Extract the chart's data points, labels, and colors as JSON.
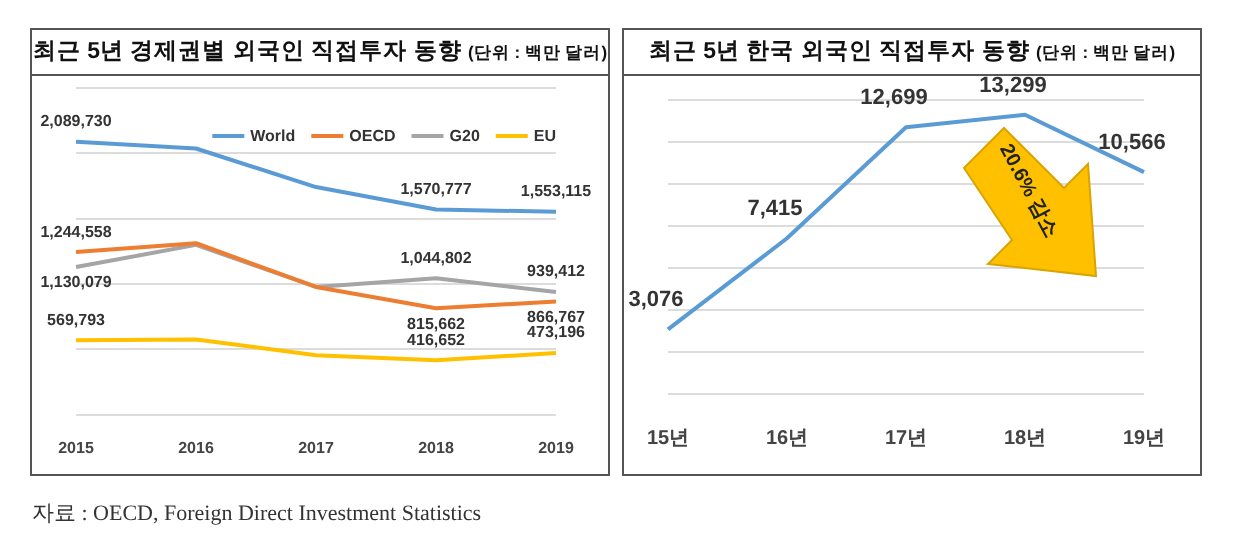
{
  "chart_data": [
    {
      "type": "line",
      "title": "최근 5년 경제권별 외국인 직접투자 동향",
      "subtitle": "(단위 : 백만 달러)",
      "categories": [
        "2015",
        "2016",
        "2017",
        "2018",
        "2019"
      ],
      "series": [
        {
          "name": "World",
          "color": "#5b9bd5",
          "values": [
            2089730,
            2037000,
            1742000,
            1570777,
            1553115
          ],
          "value_labels": [
            "2,089,730",
            null,
            null,
            "1,570,777",
            "1,553,115"
          ]
        },
        {
          "name": "OECD",
          "color": "#ed7d31",
          "values": [
            1244558,
            1313000,
            978000,
            815662,
            866767
          ],
          "value_labels": [
            "1,244,558",
            null,
            null,
            "815,662",
            "866,767"
          ]
        },
        {
          "name": "G20",
          "color": "#a5a5a5",
          "values": [
            1130079,
            1300000,
            978000,
            1044802,
            939412
          ],
          "value_labels": [
            "1,130,079",
            null,
            null,
            "1,044,802",
            "939,412"
          ]
        },
        {
          "name": "EU",
          "color": "#ffc000",
          "values": [
            569793,
            576000,
            456000,
            416652,
            473196
          ],
          "value_labels": [
            "569,793",
            null,
            null,
            "416,652",
            "473,196"
          ]
        }
      ],
      "ylim": [
        0,
        2500000
      ],
      "yticks": [
        {
          "value": 0,
          "label": null
        },
        {
          "value": 500000,
          "label": null
        },
        {
          "value": 1000000,
          "label": null
        },
        {
          "value": 1500000,
          "label": null
        },
        {
          "value": 2000000,
          "label": null
        },
        {
          "value": 2500000,
          "label": null
        }
      ],
      "grid": "y",
      "legend": "top right",
      "tick_labels": "x",
      "annotations": [
        "자료 : OECD, Foreign Direct Investment Statistics"
      ]
    },
    {
      "type": "line",
      "title": "최근 5년 한국 외국인 직접투자 동향",
      "subtitle": "(단위 : 백만 달러)",
      "categories": [
        "15년",
        "16년",
        "17년",
        "18년",
        "19년"
      ],
      "values": [
        3076,
        7415,
        12699,
        13299,
        10566
      ],
      "value_labels": [
        "3,076",
        "7,415",
        "12,699",
        "13,299",
        "10,566"
      ],
      "color": "#5b9bd5",
      "ylim": [
        0,
        14000
      ],
      "yticks": [
        {
          "value": 0,
          "label": null
        },
        {
          "value": 2000,
          "label": null
        },
        {
          "value": 4000,
          "label": null
        },
        {
          "value": 6000,
          "label": null
        },
        {
          "value": 8000,
          "label": null
        },
        {
          "value": 10000,
          "label": null
        },
        {
          "value": 12000,
          "label": null
        },
        {
          "value": 14000,
          "label": null
        }
      ],
      "grid": "y",
      "tick_labels": "x",
      "annotations": [
        "20.6% 감소"
      ]
    }
  ]
}
